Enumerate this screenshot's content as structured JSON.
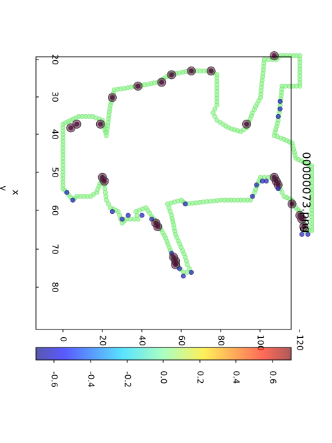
{
  "chart_data": {
    "type": "scatter",
    "title": "00000073.png",
    "xlabel": "x",
    "ylabel": "y",
    "xlim": [
      15,
      81
    ],
    "ylim": [
      -5,
      132
    ],
    "x_ticks": [
      "20",
      "30",
      "40",
      "50",
      "60",
      "70",
      "80"
    ],
    "y_ticks": [
      "0",
      "20",
      "40",
      "60",
      "80",
      "100",
      "120"
    ],
    "colorbar": {
      "range": [
        -0.7,
        0.7
      ],
      "ticks": [
        "-0.6",
        "-0.4",
        "-0.2",
        "0.0",
        "0.2",
        "0.4",
        "0.6"
      ],
      "colormap": "jet"
    },
    "outline": [
      [
        54,
        0
      ],
      [
        37,
        0
      ],
      [
        36,
        4
      ],
      [
        35,
        8
      ],
      [
        35,
        15
      ],
      [
        36,
        20
      ],
      [
        40,
        22
      ],
      [
        32,
        24
      ],
      [
        28,
        26
      ],
      [
        27,
        38
      ],
      [
        26,
        48
      ],
      [
        24,
        54
      ],
      [
        23,
        64
      ],
      [
        23,
        75
      ],
      [
        24,
        78
      ],
      [
        32,
        78
      ],
      [
        34,
        76
      ],
      [
        36,
        78
      ],
      [
        38,
        84
      ],
      [
        39,
        90
      ],
      [
        38,
        93
      ],
      [
        34,
        96
      ],
      [
        30,
        100
      ],
      [
        20,
        102
      ],
      [
        20,
        108
      ],
      [
        19,
        110
      ],
      [
        19,
        120
      ],
      [
        27,
        120
      ],
      [
        27,
        111
      ],
      [
        32,
        110
      ],
      [
        36,
        109
      ],
      [
        40,
        107
      ],
      [
        41,
        112
      ],
      [
        42,
        116
      ],
      [
        46,
        118
      ],
      [
        47,
        122
      ],
      [
        48,
        126
      ],
      [
        65,
        126
      ],
      [
        65,
        123
      ],
      [
        63,
        122
      ],
      [
        60,
        120
      ],
      [
        59,
        118
      ],
      [
        57,
        116
      ],
      [
        56,
        112
      ],
      [
        54,
        110
      ],
      [
        52,
        109
      ],
      [
        51,
        106
      ],
      [
        51,
        102
      ],
      [
        51,
        100
      ],
      [
        55,
        97
      ],
      [
        57,
        95
      ],
      [
        57,
        80
      ],
      [
        58,
        62
      ],
      [
        57,
        60
      ],
      [
        58,
        53
      ],
      [
        61,
        55
      ],
      [
        66,
        57
      ],
      [
        72,
        62
      ],
      [
        74,
        63
      ],
      [
        76,
        65
      ],
      [
        76,
        61
      ],
      [
        73,
        56
      ],
      [
        71,
        55
      ],
      [
        67,
        52
      ],
      [
        64,
        49
      ],
      [
        62,
        46
      ],
      [
        59,
        42
      ],
      [
        60,
        37
      ],
      [
        62,
        38
      ],
      [
        62,
        32
      ],
      [
        63,
        30
      ],
      [
        60,
        28
      ],
      [
        59,
        24
      ],
      [
        57,
        22
      ],
      [
        53,
        21
      ],
      [
        51,
        20
      ],
      [
        55,
        17
      ],
      [
        56,
        14
      ],
      [
        56,
        7
      ],
      [
        57,
        5
      ],
      [
        55,
        2
      ],
      [
        54,
        0
      ]
    ],
    "highlights": [
      {
        "x": 38,
        "y": 4,
        "value": 0.7,
        "size": "large"
      },
      {
        "x": 37,
        "y": 7,
        "value": 0.7,
        "size": "large"
      },
      {
        "x": 37,
        "y": 19,
        "value": 0.6,
        "size": "large"
      },
      {
        "x": 30,
        "y": 25,
        "value": 0.6,
        "size": "large"
      },
      {
        "x": 27,
        "y": 38,
        "value": 0.7,
        "size": "large"
      },
      {
        "x": 26,
        "y": 50,
        "value": 0.7,
        "size": "large"
      },
      {
        "x": 24,
        "y": 55,
        "value": 0.6,
        "size": "large"
      },
      {
        "x": 23,
        "y": 65,
        "value": 0.7,
        "size": "large"
      },
      {
        "x": 23,
        "y": 75,
        "value": 0.7,
        "size": "large"
      },
      {
        "x": 37,
        "y": 93,
        "value": 0.7,
        "size": "large"
      },
      {
        "x": 19,
        "y": 107,
        "value": 0.7,
        "size": "large"
      },
      {
        "x": 35,
        "y": 109,
        "value": -0.7,
        "size": "small"
      },
      {
        "x": 33,
        "y": 110,
        "value": -0.7,
        "size": "small"
      },
      {
        "x": 31,
        "y": 110,
        "value": -0.7,
        "size": "small"
      },
      {
        "x": 51,
        "y": 20,
        "value": 0.6,
        "size": "large"
      },
      {
        "x": 52,
        "y": 21,
        "value": 0.7,
        "size": "large"
      },
      {
        "x": 55,
        "y": 2,
        "value": -0.7,
        "size": "small"
      },
      {
        "x": 57,
        "y": 5,
        "value": -0.6,
        "size": "small"
      },
      {
        "x": 60,
        "y": 25,
        "value": -0.7,
        "size": "small"
      },
      {
        "x": 62,
        "y": 30,
        "value": -0.7,
        "size": "small"
      },
      {
        "x": 61,
        "y": 33,
        "value": -0.6,
        "size": "small"
      },
      {
        "x": 61,
        "y": 40,
        "value": -0.7,
        "size": "small"
      },
      {
        "x": 62,
        "y": 45,
        "value": -0.6,
        "size": "small"
      },
      {
        "x": 63,
        "y": 47,
        "value": 0.7,
        "size": "large"
      },
      {
        "x": 64,
        "y": 48,
        "value": 0.6,
        "size": "large"
      },
      {
        "x": 71,
        "y": 55,
        "value": -0.7,
        "size": "small"
      },
      {
        "x": 72,
        "y": 56,
        "value": 0.7,
        "size": "large"
      },
      {
        "x": 73,
        "y": 57,
        "value": 0.7,
        "size": "large"
      },
      {
        "x": 74,
        "y": 57,
        "value": 0.6,
        "size": "large"
      },
      {
        "x": 75,
        "y": 59,
        "value": -0.7,
        "size": "small"
      },
      {
        "x": 77,
        "y": 61,
        "value": -0.7,
        "size": "small"
      },
      {
        "x": 76,
        "y": 65,
        "value": -0.6,
        "size": "small"
      },
      {
        "x": 58,
        "y": 62,
        "value": -0.7,
        "size": "small"
      },
      {
        "x": 56,
        "y": 96,
        "value": -0.6,
        "size": "small"
      },
      {
        "x": 53,
        "y": 98,
        "value": -0.6,
        "size": "small"
      },
      {
        "x": 52,
        "y": 101,
        "value": -0.7,
        "size": "small"
      },
      {
        "x": 52,
        "y": 103,
        "value": -0.7,
        "size": "small"
      },
      {
        "x": 51,
        "y": 107,
        "value": 0.6,
        "size": "large"
      },
      {
        "x": 52,
        "y": 108,
        "value": 0.7,
        "size": "large"
      },
      {
        "x": 53,
        "y": 109,
        "value": 0.6,
        "size": "large"
      },
      {
        "x": 54,
        "y": 109,
        "value": -0.7,
        "size": "small"
      },
      {
        "x": 58,
        "y": 116,
        "value": 0.6,
        "size": "large"
      },
      {
        "x": 61,
        "y": 120,
        "value": 0.7,
        "size": "large"
      },
      {
        "x": 62,
        "y": 121,
        "value": 0.7,
        "size": "large"
      },
      {
        "x": 64,
        "y": 122,
        "value": 0.6,
        "size": "large"
      },
      {
        "x": 66,
        "y": 121,
        "value": -0.7,
        "size": "small"
      },
      {
        "x": 66,
        "y": 124,
        "value": -0.7,
        "size": "small"
      }
    ]
  }
}
